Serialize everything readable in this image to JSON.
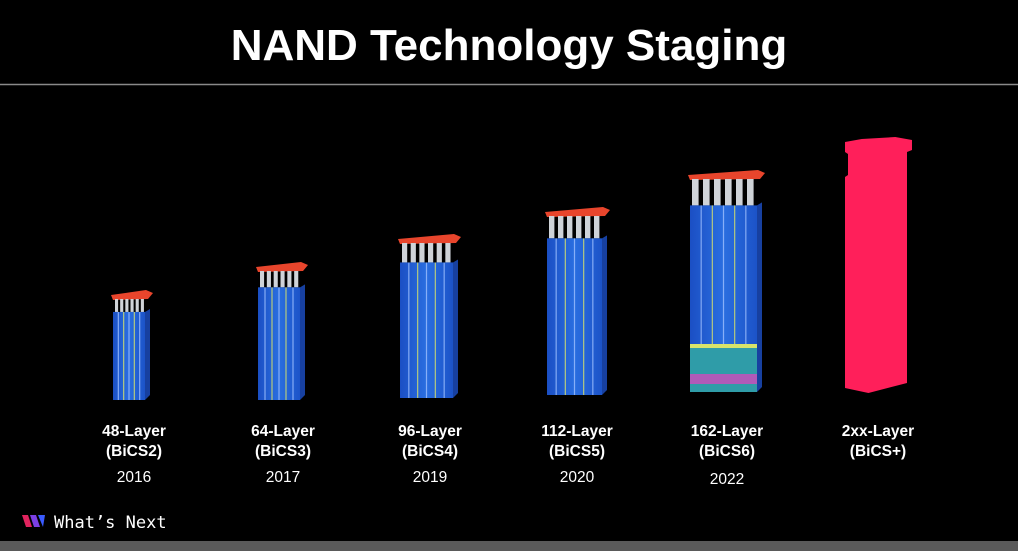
{
  "header": {
    "title": "NAND Technology Staging"
  },
  "items": [
    {
      "name": "48-Layer",
      "generation": "(BiCS2)",
      "year": "2016"
    },
    {
      "name": "64-Layer",
      "generation": "(BiCS3)",
      "year": "2017"
    },
    {
      "name": "96-Layer",
      "generation": "(BiCS4)",
      "year": "2019"
    },
    {
      "name": "112-Layer",
      "generation": "(BiCS5)",
      "year": "2020"
    },
    {
      "name": "162-Layer",
      "generation": "(BiCS6)",
      "year": "2022"
    },
    {
      "name": "2xx-Layer",
      "generation": "(BiCS+)"
    }
  ],
  "footer": {
    "text": "What’s Next"
  }
}
